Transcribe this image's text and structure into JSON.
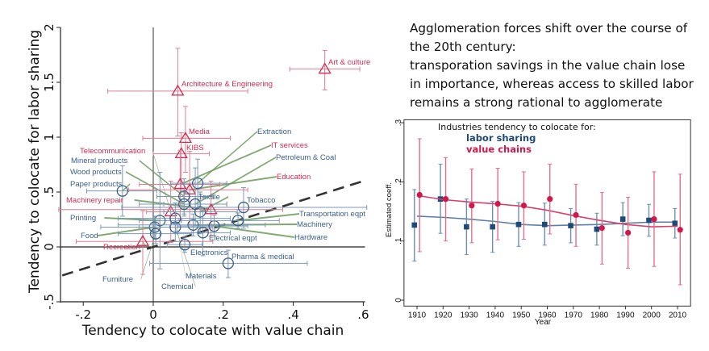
{
  "headline": {
    "lines": [
      "Agglomeration forces shift over the course of",
      "the 20th century:",
      "transporation savings in the value chain lose",
      "in importance, whereas access to skilled labor",
      "remains a strong rational to agglomerate"
    ]
  },
  "colors": {
    "services": "#d42a52",
    "manufacturing": "#3a5f8a",
    "leader": "#6b9a5c",
    "labor_sharing": "#1f4a78",
    "value_chains": "#d2174a"
  },
  "chart_data": [
    {
      "type": "scatter",
      "xlabel": "Tendency to colocate with value chain",
      "ylabel": "Tendency to colocate for labor sharing",
      "xlim": [
        -0.265,
        0.605
      ],
      "ylim": [
        -0.5,
        2
      ],
      "xticks": [
        "-.2",
        "0",
        ".2",
        ".4",
        ".6"
      ],
      "xtick_values": [
        -0.2,
        0,
        0.2,
        0.4,
        0.6
      ],
      "yticks": [
        "-.5",
        "0",
        ".5",
        "1",
        "1.5",
        "2"
      ],
      "ytick_values": [
        -0.5,
        0,
        0.5,
        1,
        1.5,
        2
      ],
      "reference_line": "45-degree dashed line y = x",
      "grid": false,
      "series": [
        {
          "group": "services",
          "marker": "triangle",
          "points": [
            {
              "name": "Art & culture",
              "x": 0.49,
              "y": 1.62,
              "x_ci": [
                0.39,
                0.59
              ],
              "y_ci": [
                1.43,
                1.79
              ]
            },
            {
              "name": "Architecture & Engineering",
              "x": 0.07,
              "y": 1.42,
              "x_ci": [
                -0.13,
                0.27
              ],
              "y_ci": [
                1.01,
                1.81
              ]
            },
            {
              "name": "Media",
              "x": 0.092,
              "y": 0.99,
              "x_ci": [
                -0.03,
                0.22
              ],
              "y_ci": [
                0.68,
                1.28
              ]
            },
            {
              "name": "KIBS",
              "x": 0.08,
              "y": 0.85,
              "x_ci": [
                0.0,
                0.16
              ],
              "y_ci": [
                0.5,
                1.04
              ]
            },
            {
              "name": "IT services",
              "x": 0.077,
              "y": 0.57,
              "x_ci": [
                -0.04,
                0.19
              ],
              "y_ci": [
                0.25,
                0.88
              ]
            },
            {
              "name": "Education",
              "x": 0.104,
              "y": 0.52,
              "x_ci": [
                -0.07,
                0.27
              ],
              "y_ci": [
                0.2,
                0.87
              ]
            },
            {
              "name": "Telecommunication",
              "x": 0.05,
              "y": 0.32,
              "x_ci": [
                -0.02,
                0.12
              ],
              "y_ci": [
                0.04,
                0.6
              ]
            },
            {
              "name": "Machinery repair",
              "x": 0.165,
              "y": 0.34,
              "x_ci": [
                -0.27,
                0.37
              ],
              "y_ci": [
                0.1,
                0.6
              ]
            },
            {
              "name": "Recreation",
              "x": -0.03,
              "y": 0.05,
              "x_ci": [
                -0.22,
                0.17
              ],
              "y_ci": [
                -0.25,
                0.33
              ]
            }
          ]
        },
        {
          "group": "manufacturing",
          "marker": "circle",
          "points": [
            {
              "name": "Extraction",
              "x": 0.127,
              "y": 0.58,
              "x_ci": [
                0.05,
                0.21
              ],
              "y_ci": [
                0.35,
                0.8
              ]
            },
            {
              "name": "Mineral products",
              "x": 0.088,
              "y": 0.46,
              "x_ci": [
                0.01,
                0.17
              ],
              "y_ci": [
                0.3,
                0.62
              ]
            },
            {
              "name": "Petroleum & Coal",
              "x": 0.12,
              "y": 0.39,
              "x_ci": [
                0.03,
                0.21
              ],
              "y_ci": [
                0.2,
                0.72
              ]
            },
            {
              "name": "Wood products",
              "x": 0.088,
              "y": 0.39,
              "x_ci": [
                -0.04,
                0.21
              ],
              "y_ci": [
                0.28,
                0.5
              ]
            },
            {
              "name": "Paper products",
              "x": -0.088,
              "y": 0.51,
              "x_ci": [
                -0.19,
                0.01
              ],
              "y_ci": [
                0.28,
                0.74
              ]
            },
            {
              "name": "Textile",
              "x": 0.134,
              "y": 0.32,
              "x_ci": [
                0.03,
                0.24
              ],
              "y_ci": [
                0.12,
                0.5
              ]
            },
            {
              "name": "Tobacco",
              "x": 0.258,
              "y": 0.36,
              "x_ci": [
                -0.09,
                0.61
              ],
              "y_ci": [
                0.17,
                0.54
              ]
            },
            {
              "name": "Printing",
              "x": 0.019,
              "y": 0.24,
              "x_ci": [
                -0.04,
                0.08
              ],
              "y_ci": [
                -0.2,
                0.68
              ]
            },
            {
              "name": "Materials",
              "x": 0.063,
              "y": 0.26,
              "x_ci": [
                -0.1,
                0.22
              ],
              "y_ci": [
                0.12,
                0.4
              ]
            },
            {
              "name": "Food",
              "x": 0.004,
              "y": 0.18,
              "x_ci": [
                -0.15,
                0.16
              ],
              "y_ci": [
                0.08,
                0.28
              ]
            },
            {
              "name": "Chemical",
              "x": 0.063,
              "y": 0.18,
              "x_ci": [
                -0.04,
                0.17
              ],
              "y_ci": [
                0.05,
                0.32
              ]
            },
            {
              "name": "Machinery",
              "x": 0.114,
              "y": 0.2,
              "x_ci": [
                -0.1,
                0.32
              ],
              "y_ci": [
                0.1,
                0.3
              ]
            },
            {
              "name": "Hardware",
              "x": 0.174,
              "y": 0.19,
              "x_ci": [
                0.07,
                0.27
              ],
              "y_ci": [
                0.1,
                0.29
              ]
            },
            {
              "name": "Transportation eqpt",
              "x": 0.242,
              "y": 0.24,
              "x_ci": [
                0.08,
                0.36
              ],
              "y_ci": [
                0.17,
                0.31
              ]
            },
            {
              "name": "Furniture",
              "x": 0.007,
              "y": 0.12,
              "x_ci": [
                -0.1,
                0.11
              ],
              "y_ci": [
                0.03,
                0.22
              ]
            },
            {
              "name": "Electrical eqpt",
              "x": 0.142,
              "y": 0.13,
              "x_ci": [
                0.07,
                0.22
              ],
              "y_ci": [
                -0.08,
                0.33
              ]
            },
            {
              "name": "Electronics",
              "x": 0.09,
              "y": 0.02,
              "x_ci": [
                0.04,
                0.14
              ],
              "y_ci": [
                -0.05,
                0.09
              ]
            },
            {
              "name": "Pharma & medical",
              "x": 0.214,
              "y": -0.15,
              "x_ci": [
                -0.01,
                0.44
              ],
              "y_ci": [
                -0.28,
                -0.03
              ]
            }
          ]
        }
      ]
    },
    {
      "type": "line",
      "xlabel": "Year",
      "ylabel": "Estimated coeff.",
      "legend_title": "Industries tendency to colocate for:",
      "legend_placement": "top-left",
      "xlim": [
        1905,
        2015
      ],
      "ylim": [
        -0.01,
        0.305
      ],
      "categories": [
        1910,
        1920,
        1930,
        1940,
        1950,
        1960,
        1970,
        1980,
        1990,
        2000,
        2010
      ],
      "yticks": [
        "0",
        ".1",
        ".2",
        ".3"
      ],
      "ytick_values": [
        0,
        0.1,
        0.2,
        0.3
      ],
      "grid": false,
      "series": [
        {
          "name": "labor sharing",
          "marker": "square",
          "values": [
            0.127,
            0.171,
            0.124,
            0.124,
            0.128,
            0.128,
            0.126,
            0.12,
            0.137,
            0.135,
            0.13
          ],
          "ci_low": [
            0.066,
            0.113,
            0.077,
            0.081,
            0.091,
            0.093,
            0.097,
            0.093,
            0.109,
            0.108,
            0.105
          ],
          "ci_high": [
            0.187,
            0.23,
            0.171,
            0.167,
            0.165,
            0.164,
            0.155,
            0.147,
            0.165,
            0.162,
            0.155
          ],
          "trend": [
            0.142,
            0.14,
            0.137,
            0.133,
            0.128,
            0.126,
            0.127,
            0.128,
            0.13,
            0.132,
            0.132
          ]
        },
        {
          "name": "value chains",
          "marker": "circle",
          "values": [
            0.178,
            0.171,
            0.16,
            0.163,
            0.16,
            0.171,
            0.144,
            0.122,
            0.114,
            0.137,
            0.119
          ],
          "ci_low": [
            0.082,
            0.1,
            0.097,
            0.102,
            0.103,
            0.112,
            0.091,
            0.061,
            0.054,
            0.057,
            0.026
          ],
          "ci_high": [
            0.273,
            0.241,
            0.222,
            0.223,
            0.217,
            0.23,
            0.196,
            0.182,
            0.174,
            0.217,
            0.213
          ],
          "trend": [
            0.177,
            0.17,
            0.166,
            0.163,
            0.159,
            0.152,
            0.143,
            0.135,
            0.128,
            0.124,
            0.125
          ]
        }
      ]
    }
  ]
}
